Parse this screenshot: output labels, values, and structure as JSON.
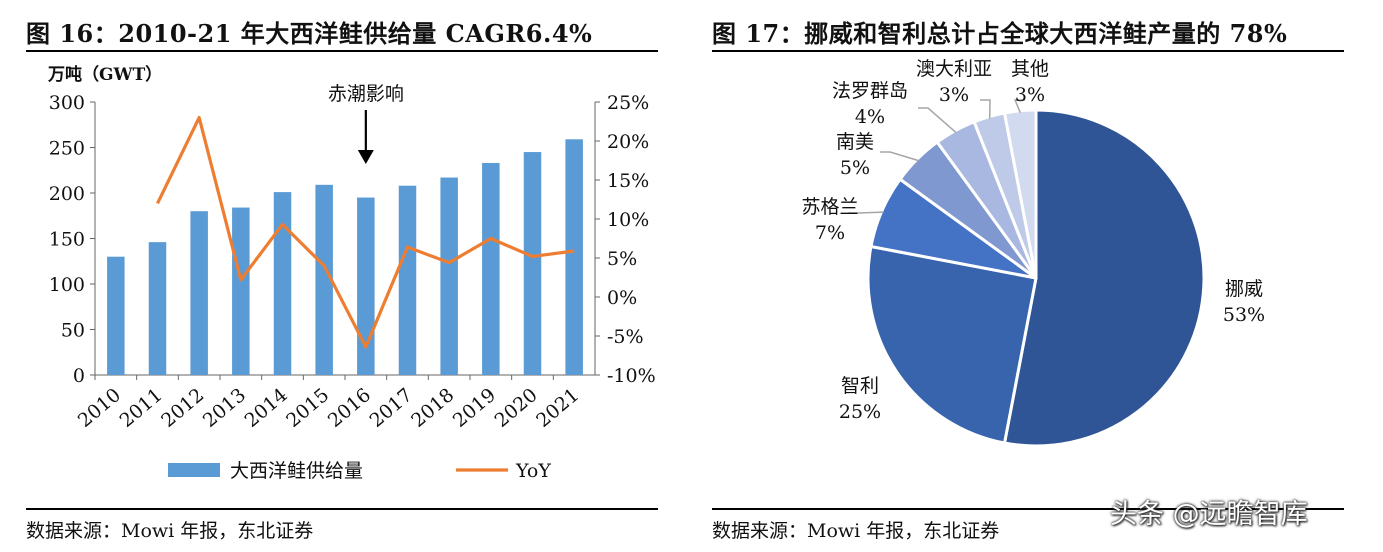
{
  "left_figure": {
    "title": "图 16：2010-21 年大西洋鲑供给量 CAGR6.4%",
    "source": "数据来源：Mowi 年报，东北证券"
  },
  "right_figure": {
    "title": "图 17：挪威和智利总计占全球大西洋鲑产量的 78%",
    "source": "数据来源：Mowi 年报，东北证券"
  },
  "watermark": "头条 @远瞻智库",
  "colors": {
    "bar": "#5b9bd5",
    "yoy_line": "#ed7d31",
    "pie": [
      "#2f5597",
      "#3764ad",
      "#4472c4",
      "#7f98cf",
      "#a9b8e0",
      "#bfc9e8",
      "#d2daf0"
    ]
  },
  "chart_data": [
    {
      "type": "bar",
      "unit_label": "万吨（GWT）",
      "categories": [
        "2010",
        "2011",
        "2012",
        "2013",
        "2014",
        "2015",
        "2016",
        "2017",
        "2018",
        "2019",
        "2020",
        "2021"
      ],
      "series": [
        {
          "name": "大西洋鲑供给量",
          "type": "bar",
          "axis": "left",
          "values": [
            130,
            146,
            180,
            184,
            201,
            209,
            195,
            208,
            217,
            233,
            245,
            259
          ]
        },
        {
          "name": "YoY",
          "type": "line",
          "axis": "right",
          "values": [
            null,
            12.0,
            23.0,
            2.2,
            9.3,
            4.0,
            -6.4,
            6.4,
            4.4,
            7.5,
            5.2,
            5.9
          ]
        }
      ],
      "ylim_left": [
        0,
        300
      ],
      "yticks_left": [
        "0",
        "50",
        "100",
        "150",
        "200",
        "250",
        "300"
      ],
      "ylim_right": [
        -10,
        25
      ],
      "yticks_right": [
        "-10%",
        "-5%",
        "0%",
        "5%",
        "10%",
        "15%",
        "20%",
        "25%"
      ],
      "annotation": {
        "text": "赤潮影响",
        "category": "2016"
      },
      "legend_position": "bottom"
    },
    {
      "type": "pie",
      "labels": [
        "挪威",
        "智利",
        "苏格兰",
        "南美",
        "法罗群岛",
        "澳大利亚",
        "其他"
      ],
      "values": [
        53,
        25,
        7,
        5,
        4,
        3,
        3
      ],
      "value_labels": [
        "53%",
        "25%",
        "7%",
        "5%",
        "4%",
        "3%",
        "3%"
      ]
    }
  ]
}
